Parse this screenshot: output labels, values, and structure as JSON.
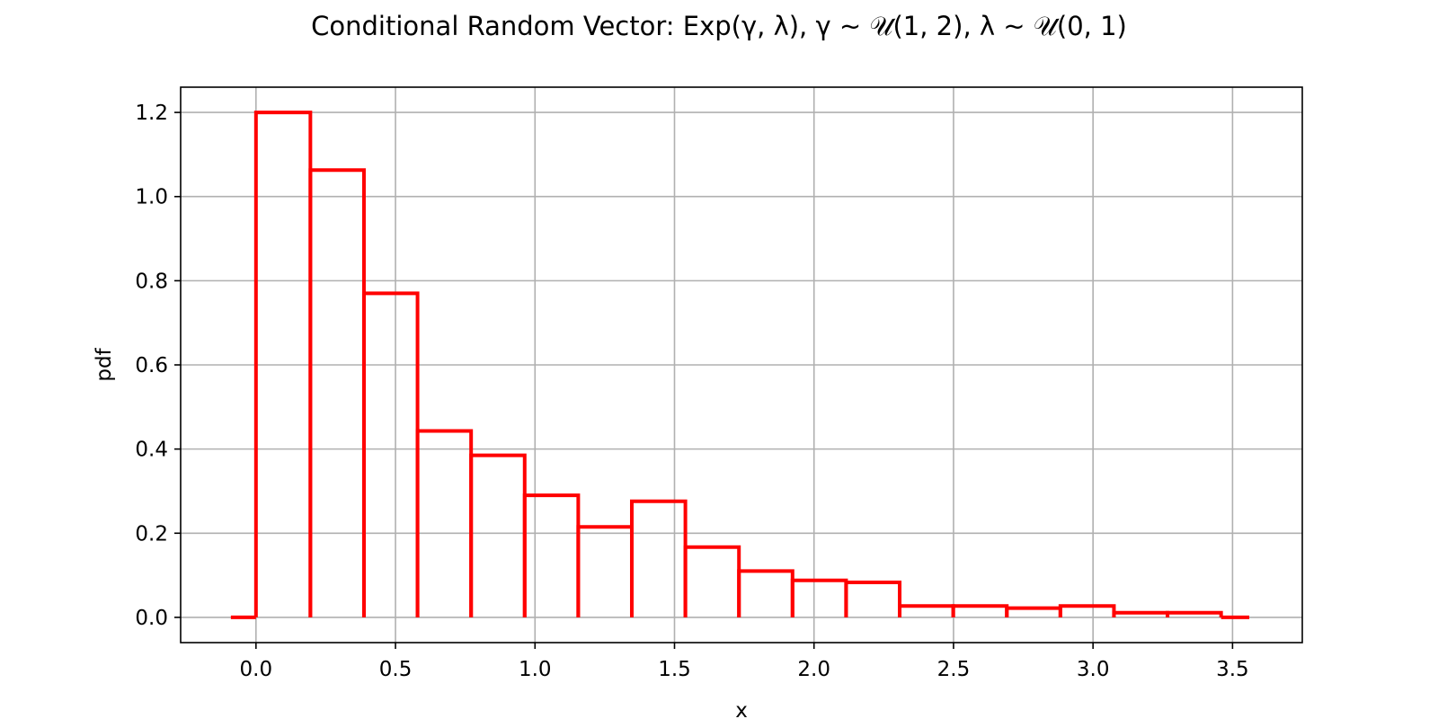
{
  "chart_data": {
    "type": "histogram-step",
    "title": "Conditional Random Vector: Exp(γ, λ), γ ~ 𝒰(1, 2), λ ~ 𝒰(0, 1)",
    "xlabel": "x",
    "ylabel": "pdf",
    "xlim": [
      -0.27,
      3.75
    ],
    "ylim": [
      -0.06,
      1.26
    ],
    "grid": true,
    "x_ticks": [
      0.0,
      0.5,
      1.0,
      1.5,
      2.0,
      2.5,
      3.0,
      3.5
    ],
    "x_tick_labels": [
      "0.0",
      "0.5",
      "1.0",
      "1.5",
      "2.0",
      "2.5",
      "3.0",
      "3.5"
    ],
    "y_ticks": [
      0.0,
      0.2,
      0.4,
      0.6,
      0.8,
      1.0,
      1.2
    ],
    "y_tick_labels": [
      "0.0",
      "0.2",
      "0.4",
      "0.6",
      "0.8",
      "1.0",
      "1.2"
    ],
    "line_color": "#ff0000",
    "grid_color": "#b0b0b0",
    "bin_edges": [
      0.0,
      0.195,
      0.387,
      0.579,
      0.771,
      0.963,
      1.155,
      1.347,
      1.539,
      1.731,
      1.923,
      2.115,
      2.307,
      2.499,
      2.691,
      2.883,
      3.075,
      3.267,
      3.459
    ],
    "values": [
      1.2,
      1.063,
      0.77,
      0.443,
      0.385,
      0.29,
      0.215,
      0.276,
      0.167,
      0.11,
      0.088,
      0.083,
      0.027,
      0.027,
      0.022,
      0.027,
      0.011,
      0.011
    ],
    "left_baseline_start": -0.09,
    "right_baseline_end": 3.56
  }
}
